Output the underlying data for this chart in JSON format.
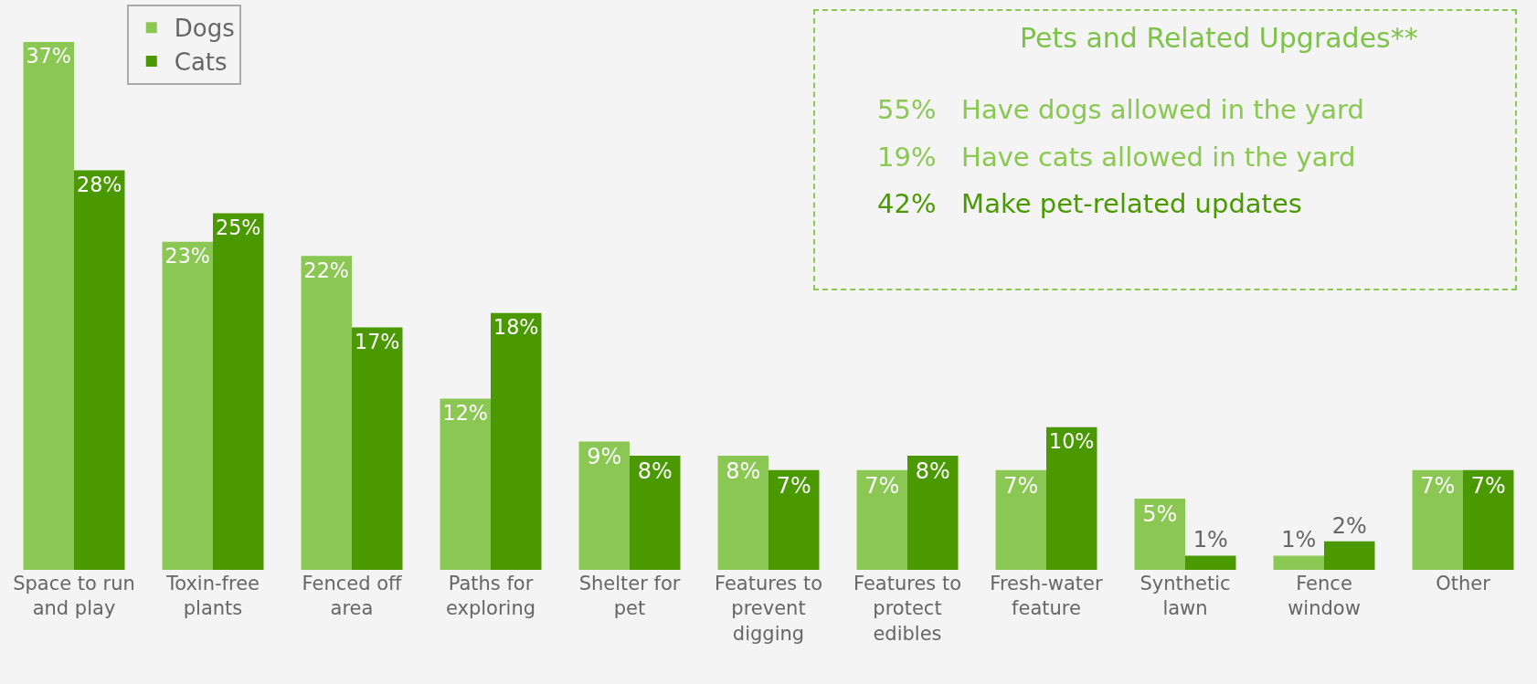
{
  "chart_data": {
    "type": "bar",
    "categories": [
      "Space to run and play",
      "Toxin-free plants",
      "Fenced off area",
      "Paths for exploring",
      "Shelter for pet",
      "Features to prevent digging",
      "Features to protect edibles",
      "Fresh-water feature",
      "Synthetic lawn",
      "Fence window",
      "Other"
    ],
    "series": [
      {
        "name": "Dogs",
        "color": "#8bc853",
        "values": [
          37,
          23,
          22,
          12,
          9,
          8,
          7,
          7,
          5,
          1,
          7
        ],
        "value_labels": [
          "37%",
          "23%",
          "22%",
          "12%",
          "9%",
          "8%",
          "7%",
          "7%",
          "5%",
          "1%",
          "7%"
        ]
      },
      {
        "name": "Cats",
        "color": "#4a9900",
        "values": [
          28,
          25,
          17,
          18,
          8,
          7,
          8,
          10,
          1,
          2,
          7
        ],
        "value_labels": [
          "28%",
          "25%",
          "17%",
          "18%",
          "8%",
          "7%",
          "8%",
          "10%",
          "1%",
          "2%",
          "7%"
        ]
      }
    ],
    "legend": "top left",
    "annotations": [
      "Pets and Related Upgrades**",
      "55%   Have dogs allowed in the yard",
      "19%   Have cats allowed in the yard",
      "42%   Make pet-related updates"
    ]
  }
}
